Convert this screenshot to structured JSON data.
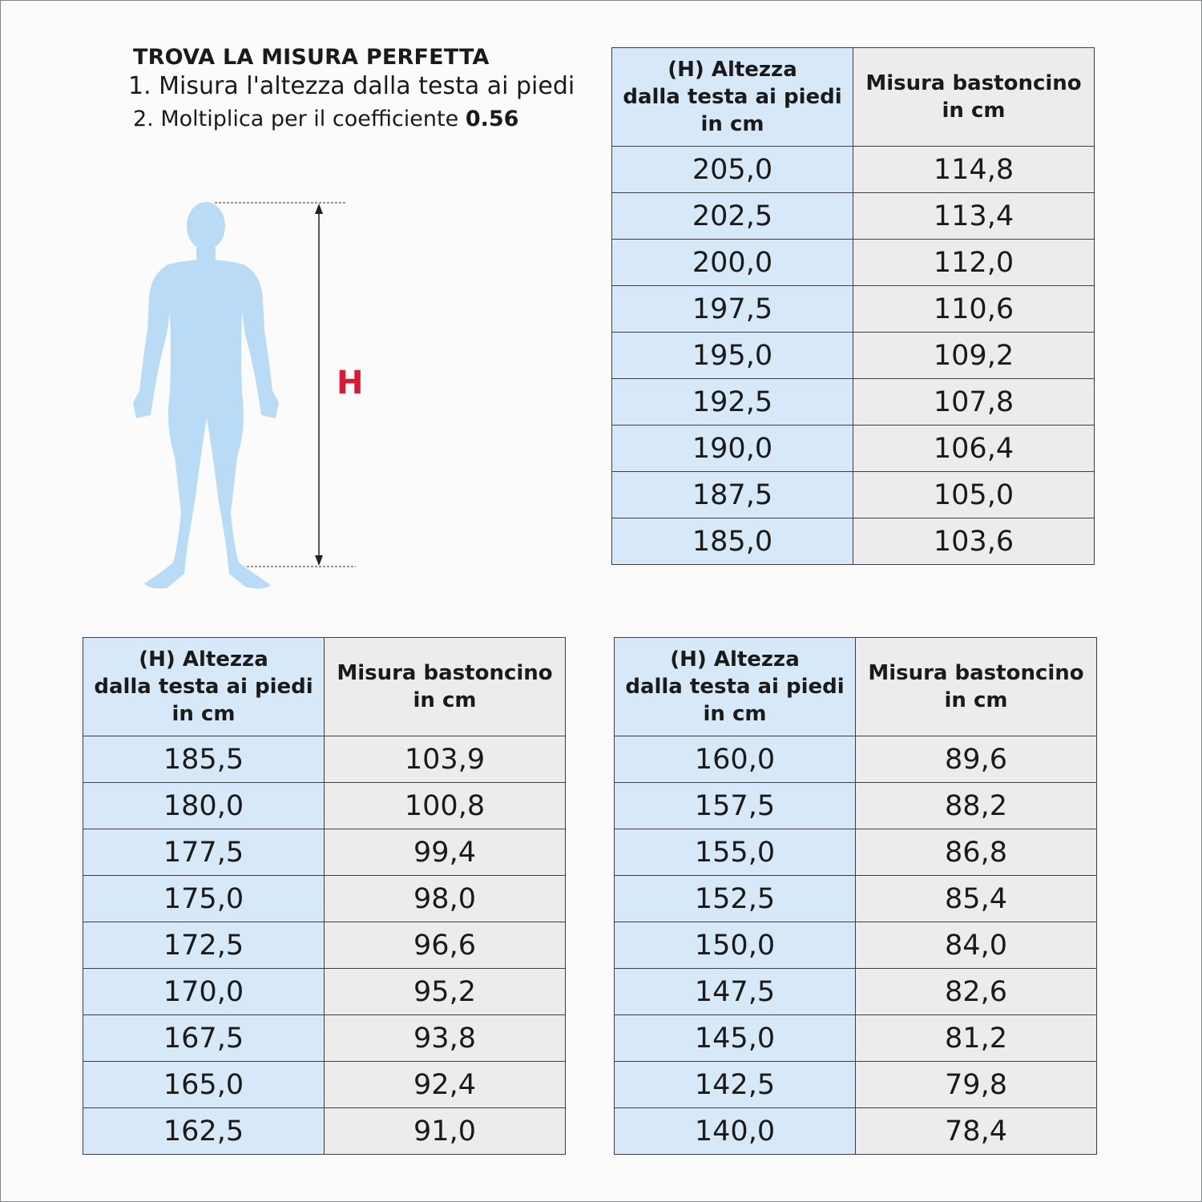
{
  "intro": {
    "title": "TROVA LA MISURA PERFETTA",
    "step1": "1. Misura l'altezza dalla testa ai piedi",
    "step2_text": "2. Moltiplica per il coefficiente",
    "coefficient": "0.56"
  },
  "figure": {
    "height_label": "H",
    "icon": "human-silhouette-icon",
    "colors": {
      "body": "#b9dbf6",
      "label": "#d81b35"
    }
  },
  "tables": [
    {
      "header_height": "(H) Altezza dalla testa ai piedi in cm",
      "header_measure": "Misura bastoncino in cm",
      "rows": [
        [
          "205,0",
          "114,8"
        ],
        [
          "202,5",
          "113,4"
        ],
        [
          "200,0",
          "112,0"
        ],
        [
          "197,5",
          "110,6"
        ],
        [
          "195,0",
          "109,2"
        ],
        [
          "192,5",
          "107,8"
        ],
        [
          "190,0",
          "106,4"
        ],
        [
          "187,5",
          "105,0"
        ],
        [
          "185,0",
          "103,6"
        ]
      ]
    },
    {
      "header_height": "(H) Altezza dalla testa ai piedi in cm",
      "header_measure": "Misura bastoncino in cm",
      "rows": [
        [
          "185,5",
          "103,9"
        ],
        [
          "180,0",
          "100,8"
        ],
        [
          "177,5",
          "99,4"
        ],
        [
          "175,0",
          "98,0"
        ],
        [
          "172,5",
          "96,6"
        ],
        [
          "170,0",
          "95,2"
        ],
        [
          "167,5",
          "93,8"
        ],
        [
          "165,0",
          "92,4"
        ],
        [
          "162,5",
          "91,0"
        ]
      ]
    },
    {
      "header_height": "(H) Altezza dalla testa ai piedi in cm",
      "header_measure": "Misura bastoncino in cm",
      "rows": [
        [
          "160,0",
          "89,6"
        ],
        [
          "157,5",
          "88,2"
        ],
        [
          "155,0",
          "86,8"
        ],
        [
          "152,5",
          "85,4"
        ],
        [
          "150,0",
          "84,0"
        ],
        [
          "147,5",
          "82,6"
        ],
        [
          "145,0",
          "81,2"
        ],
        [
          "142,5",
          "79,8"
        ],
        [
          "140,0",
          "78,4"
        ]
      ]
    }
  ],
  "colors": {
    "height_column": "#d7e8f8",
    "measure_column": "#ececed",
    "border": "#3b3f45"
  }
}
